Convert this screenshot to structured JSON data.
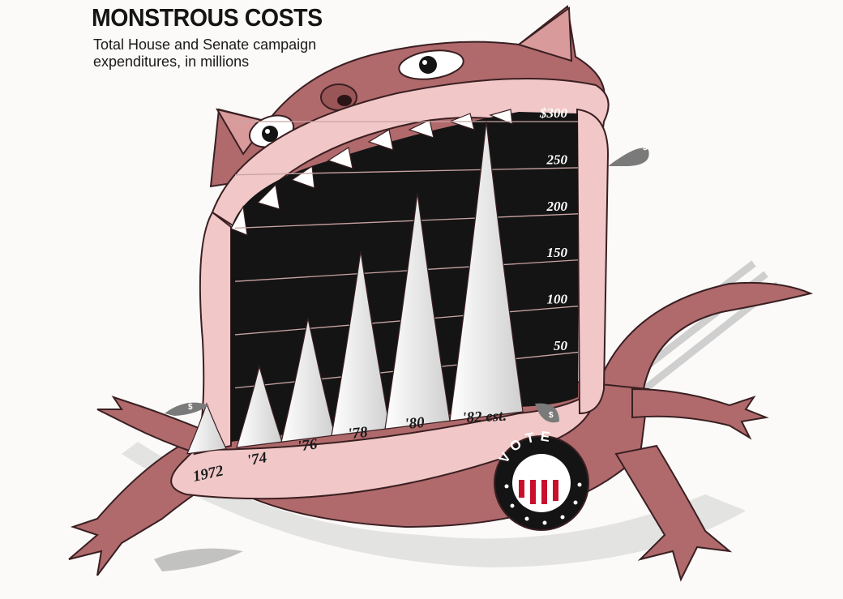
{
  "chart_data": {
    "type": "bar",
    "title": "MONSTROUS COSTS",
    "subtitle": "Total House and Senate campaign expenditures, in millions",
    "categories": [
      "1972",
      "'74",
      "'76",
      "'78",
      "'80",
      "'82 est."
    ],
    "values": [
      38,
      68,
      110,
      172,
      228,
      300
    ],
    "ylim": [
      0,
      300
    ],
    "yticks": [
      {
        "value": 50,
        "label": "50"
      },
      {
        "value": 100,
        "label": "100"
      },
      {
        "value": 150,
        "label": "150"
      },
      {
        "value": 200,
        "label": "200"
      },
      {
        "value": 250,
        "label": "250"
      },
      {
        "value": 300,
        "label": "$300"
      }
    ],
    "grid": true,
    "xlabel": "",
    "ylabel": ""
  },
  "badge": {
    "text": "VOTE"
  },
  "coin_mark": "$",
  "colors": {
    "monster_body": "#b06a6c",
    "monster_outline": "#3a1f22",
    "gums": "#f1c7c7",
    "mouth_interior": "#141414",
    "teeth": "#ffffff",
    "badge_red": "#c8102e",
    "badge_blue": "#1a1a1a"
  }
}
